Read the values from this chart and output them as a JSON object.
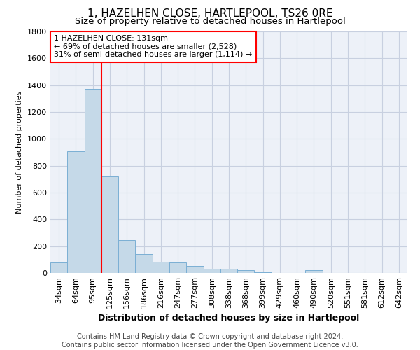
{
  "title": "1, HAZELHEN CLOSE, HARTLEPOOL, TS26 0RE",
  "subtitle": "Size of property relative to detached houses in Hartlepool",
  "xlabel": "Distribution of detached houses by size in Hartlepool",
  "ylabel": "Number of detached properties",
  "footer_line1": "Contains HM Land Registry data © Crown copyright and database right 2024.",
  "footer_line2": "Contains public sector information licensed under the Open Government Licence v3.0.",
  "bin_labels": [
    "34sqm",
    "64sqm",
    "95sqm",
    "125sqm",
    "156sqm",
    "186sqm",
    "216sqm",
    "247sqm",
    "277sqm",
    "308sqm",
    "338sqm",
    "368sqm",
    "399sqm",
    "429sqm",
    "460sqm",
    "490sqm",
    "520sqm",
    "551sqm",
    "581sqm",
    "612sqm",
    "642sqm"
  ],
  "bar_values": [
    80,
    910,
    1370,
    720,
    245,
    140,
    85,
    80,
    50,
    30,
    30,
    20,
    5,
    0,
    0,
    20,
    0,
    0,
    0,
    0,
    0
  ],
  "bar_color": "#c5d9e8",
  "bar_edge_color": "#7bafd4",
  "grid_color": "#c8d0e0",
  "bg_color": "#edf1f8",
  "vline_color": "red",
  "annotation_line1": "1 HAZELHEN CLOSE: 131sqm",
  "annotation_line2": "← 69% of detached houses are smaller (2,528)",
  "annotation_line3": "31% of semi-detached houses are larger (1,114) →",
  "annotation_box_color": "red",
  "ylim": [
    0,
    1800
  ],
  "yticks": [
    0,
    200,
    400,
    600,
    800,
    1000,
    1200,
    1400,
    1600,
    1800
  ],
  "title_fontsize": 11,
  "subtitle_fontsize": 9.5,
  "ylabel_fontsize": 8,
  "xlabel_fontsize": 9,
  "tick_fontsize": 8,
  "footer_fontsize": 7
}
